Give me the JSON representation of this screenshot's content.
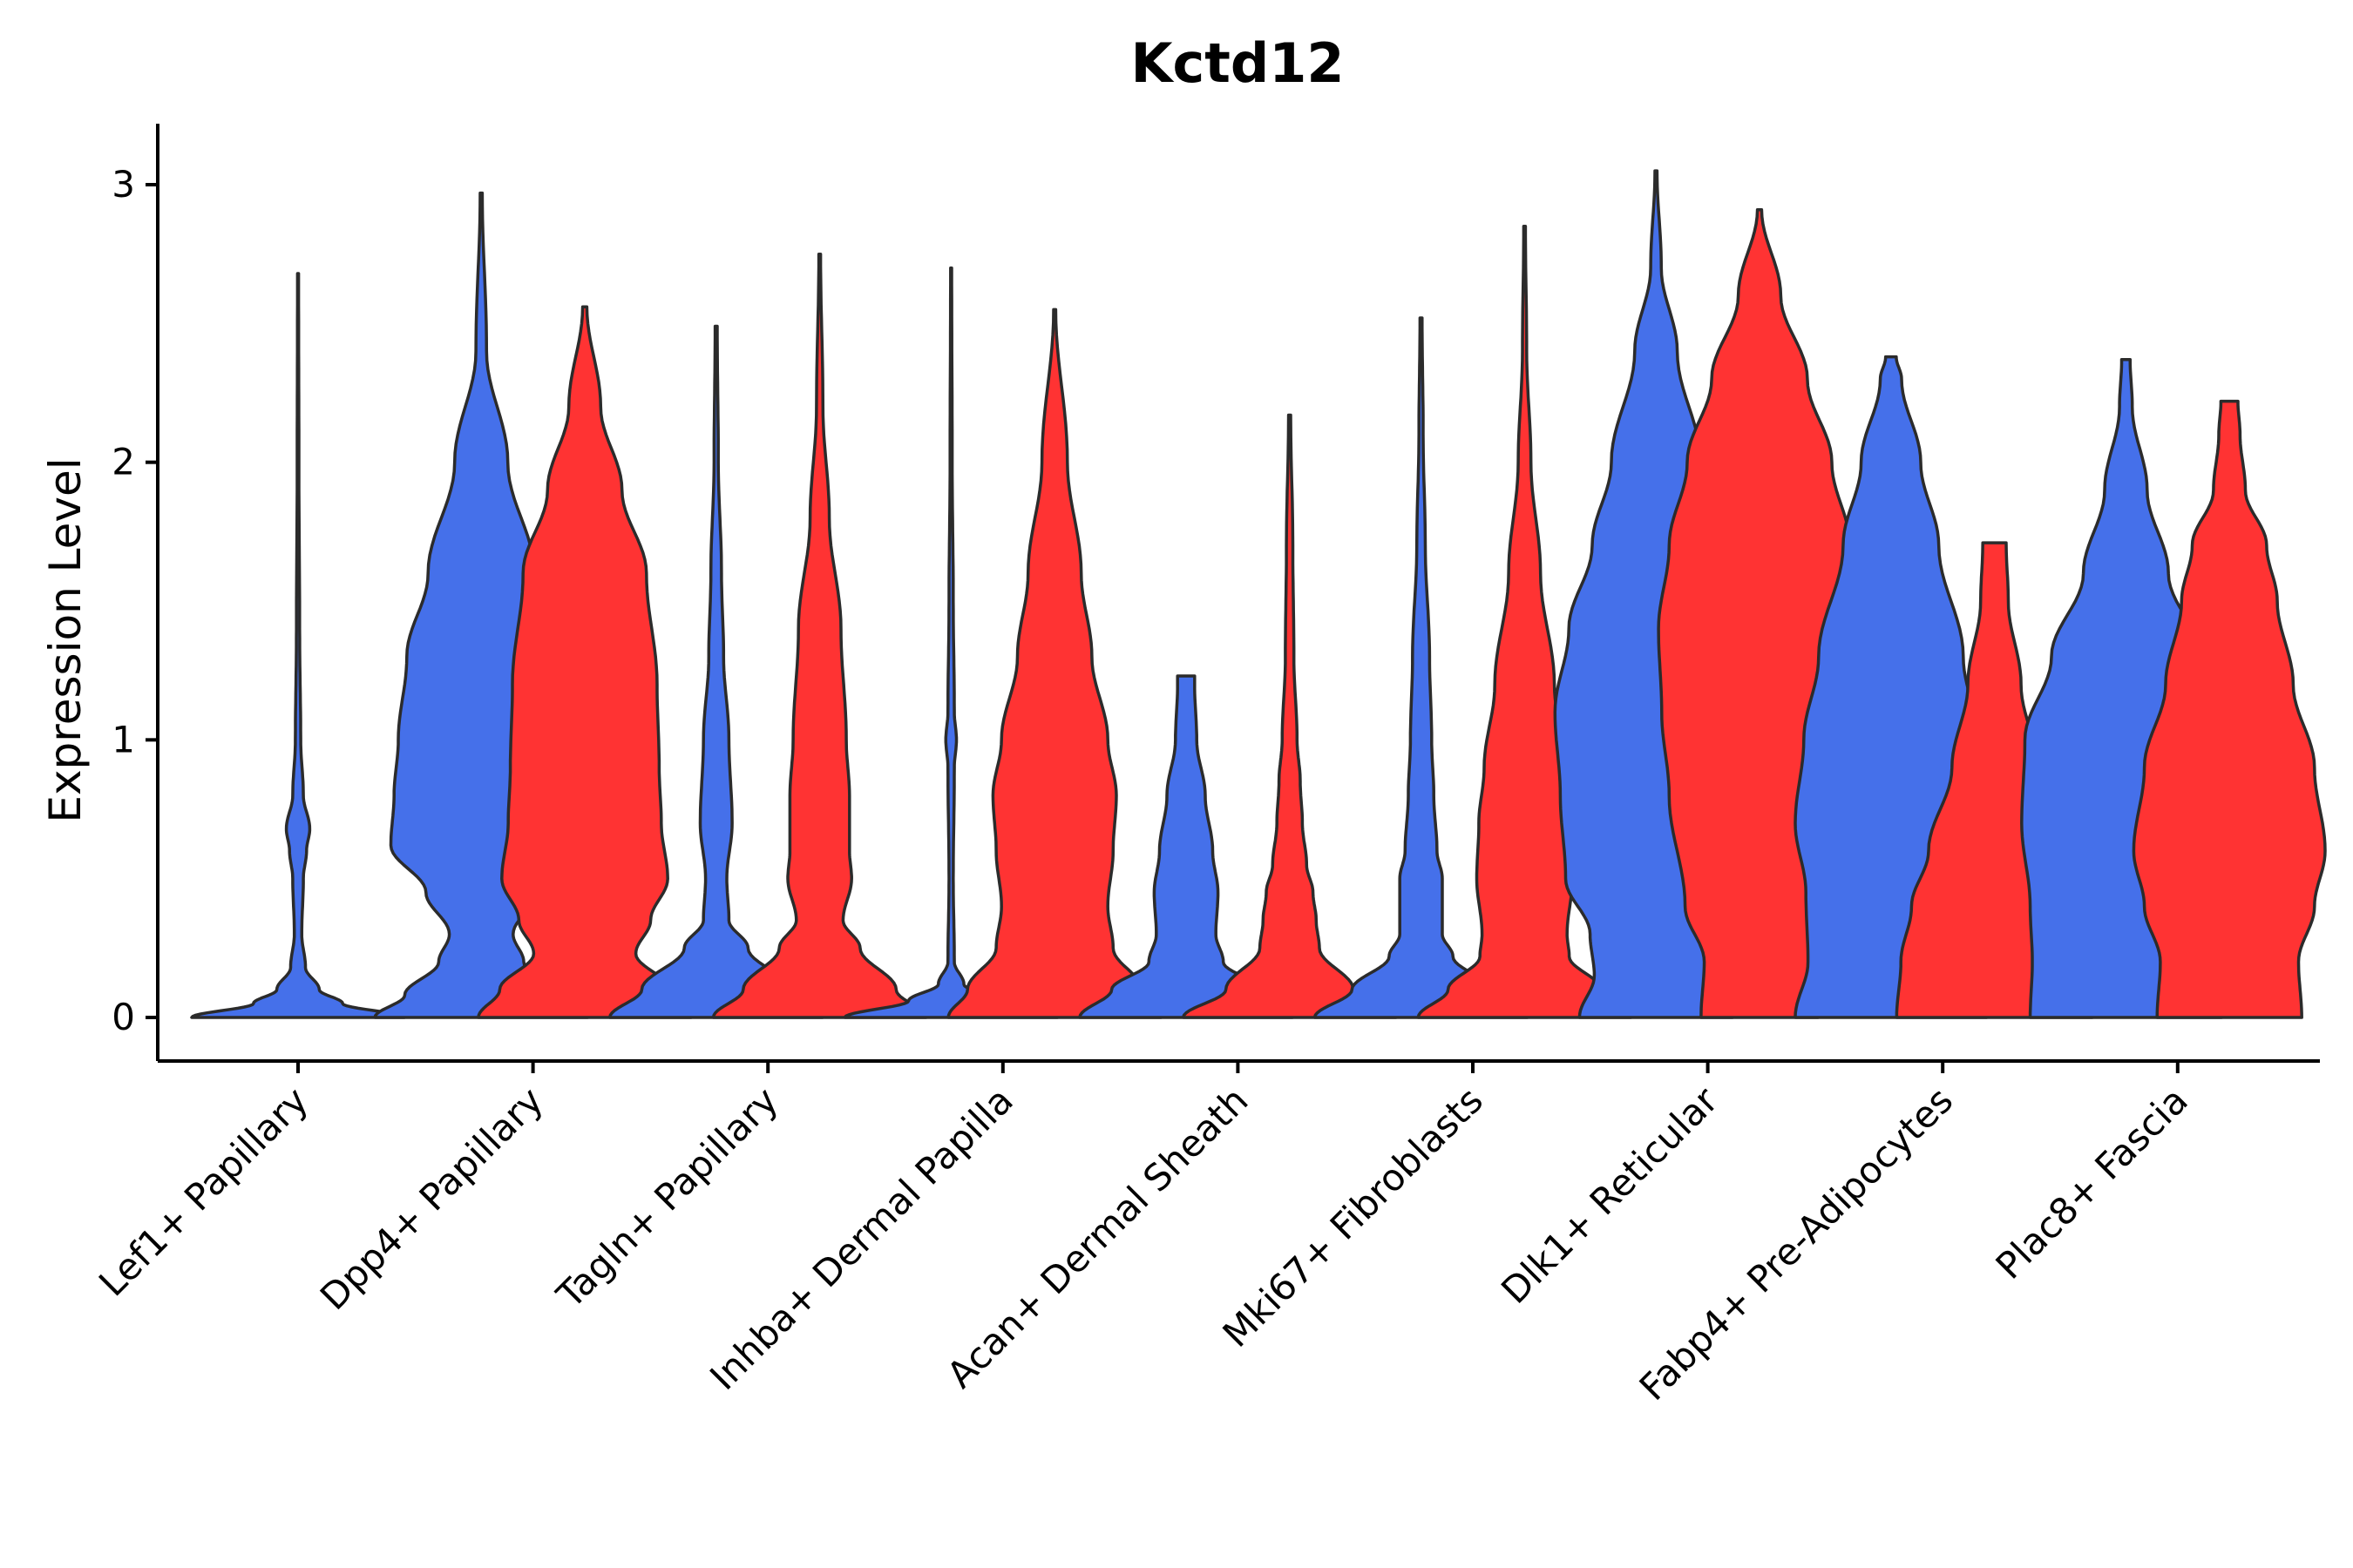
{
  "colors": {
    "blue": "#4570EA",
    "red": "#FF3333",
    "outline": "#2b2b2b"
  },
  "chart_data": {
    "type": "violin",
    "title": "Kctd12",
    "xlabel": "",
    "ylabel": "Expression Level",
    "ylim": [
      -0.15,
      3.2
    ],
    "yticks": [
      0,
      1,
      2,
      3
    ],
    "ytick_labels": [
      "0",
      "1",
      "2",
      "3"
    ],
    "grid": false,
    "legend": "none",
    "categories": [
      "Lef1+ Papillary",
      "Dpp4+ Papillary",
      "Tagln+ Papillary",
      "Inhba+ Dermal Papilla",
      "Acan+ Dermal Sheath",
      "Mki67+ Fibroblasts",
      "Dlk1+ Reticular",
      "Fabp4+ Pre-Adipocytes",
      "Plac8+ Fascia"
    ],
    "violins": [
      {
        "category": 0,
        "group": "blue",
        "offset": 0,
        "max": 2.68,
        "profile": [
          [
            0,
            1
          ],
          [
            0.05,
            0.42
          ],
          [
            0.1,
            0.2
          ],
          [
            0.18,
            0.07
          ],
          [
            0.3,
            0.035
          ],
          [
            0.5,
            0.05
          ],
          [
            0.6,
            0.08
          ],
          [
            0.68,
            0.11
          ],
          [
            0.8,
            0.05
          ],
          [
            1.0,
            0.025
          ],
          [
            1.4,
            0.015
          ],
          [
            2.0,
            0.008
          ],
          [
            2.68,
            0.005
          ]
        ]
      },
      {
        "category": 1,
        "group": "blue",
        "offset": -0.22,
        "max": 2.97,
        "profile": [
          [
            0,
            1
          ],
          [
            0.08,
            0.72
          ],
          [
            0.2,
            0.4
          ],
          [
            0.3,
            0.3
          ],
          [
            0.45,
            0.52
          ],
          [
            0.62,
            0.85
          ],
          [
            0.8,
            0.82
          ],
          [
            1.0,
            0.78
          ],
          [
            1.3,
            0.7
          ],
          [
            1.6,
            0.5
          ],
          [
            2.0,
            0.25
          ],
          [
            2.4,
            0.05
          ],
          [
            2.97,
            0.01
          ]
        ]
      },
      {
        "category": 1,
        "group": "red",
        "offset": 0.22,
        "max": 2.56,
        "profile": [
          [
            0,
            1
          ],
          [
            0.1,
            0.8
          ],
          [
            0.23,
            0.48
          ],
          [
            0.35,
            0.62
          ],
          [
            0.5,
            0.78
          ],
          [
            0.7,
            0.72
          ],
          [
            0.9,
            0.7
          ],
          [
            1.2,
            0.68
          ],
          [
            1.6,
            0.58
          ],
          [
            1.9,
            0.35
          ],
          [
            2.2,
            0.15
          ],
          [
            2.56,
            0.02
          ]
        ]
      },
      {
        "category": 2,
        "group": "blue",
        "offset": -0.22,
        "max": 2.49,
        "profile": [
          [
            0,
            1
          ],
          [
            0.1,
            0.7
          ],
          [
            0.25,
            0.3
          ],
          [
            0.35,
            0.12
          ],
          [
            0.5,
            0.1
          ],
          [
            0.7,
            0.15
          ],
          [
            1.0,
            0.12
          ],
          [
            1.3,
            0.07
          ],
          [
            1.6,
            0.05
          ],
          [
            2.0,
            0.02
          ],
          [
            2.49,
            0.01
          ]
        ]
      },
      {
        "category": 2,
        "group": "red",
        "offset": 0.22,
        "max": 2.75,
        "profile": [
          [
            0,
            1
          ],
          [
            0.1,
            0.72
          ],
          [
            0.25,
            0.38
          ],
          [
            0.35,
            0.22
          ],
          [
            0.5,
            0.3
          ],
          [
            0.6,
            0.28
          ],
          [
            0.8,
            0.28
          ],
          [
            1.0,
            0.25
          ],
          [
            1.4,
            0.2
          ],
          [
            1.8,
            0.09
          ],
          [
            2.2,
            0.03
          ],
          [
            2.75,
            0.008
          ]
        ]
      },
      {
        "category": 3,
        "group": "blue",
        "offset": -0.22,
        "max": 2.7,
        "profile": [
          [
            0,
            1
          ],
          [
            0.06,
            0.4
          ],
          [
            0.12,
            0.12
          ],
          [
            0.2,
            0.03
          ],
          [
            0.5,
            0.02
          ],
          [
            0.9,
            0.03
          ],
          [
            1.0,
            0.05
          ],
          [
            1.1,
            0.03
          ],
          [
            1.5,
            0.02
          ],
          [
            2.0,
            0.01
          ],
          [
            2.7,
            0.005
          ]
        ]
      },
      {
        "category": 3,
        "group": "red",
        "offset": 0.22,
        "max": 2.55,
        "profile": [
          [
            0,
            1
          ],
          [
            0.1,
            0.82
          ],
          [
            0.25,
            0.55
          ],
          [
            0.4,
            0.5
          ],
          [
            0.6,
            0.55
          ],
          [
            0.8,
            0.58
          ],
          [
            1.0,
            0.5
          ],
          [
            1.3,
            0.35
          ],
          [
            1.6,
            0.25
          ],
          [
            2.0,
            0.12
          ],
          [
            2.55,
            0.01
          ]
        ]
      },
      {
        "category": 4,
        "group": "blue",
        "offset": -0.22,
        "max": 1.23,
        "profile": [
          [
            0,
            1
          ],
          [
            0.1,
            0.7
          ],
          [
            0.2,
            0.35
          ],
          [
            0.3,
            0.28
          ],
          [
            0.45,
            0.3
          ],
          [
            0.6,
            0.25
          ],
          [
            0.8,
            0.18
          ],
          [
            1.0,
            0.1
          ],
          [
            1.2,
            0.08
          ],
          [
            1.23,
            0.08
          ]
        ]
      },
      {
        "category": 4,
        "group": "red",
        "offset": 0.22,
        "max": 2.17,
        "profile": [
          [
            0,
            1
          ],
          [
            0.1,
            0.6
          ],
          [
            0.25,
            0.28
          ],
          [
            0.35,
            0.25
          ],
          [
            0.45,
            0.22
          ],
          [
            0.55,
            0.16
          ],
          [
            0.7,
            0.12
          ],
          [
            0.85,
            0.1
          ],
          [
            1.0,
            0.07
          ],
          [
            1.3,
            0.04
          ],
          [
            1.7,
            0.03
          ],
          [
            2.17,
            0.01
          ]
        ]
      },
      {
        "category": 5,
        "group": "blue",
        "offset": -0.22,
        "max": 2.52,
        "profile": [
          [
            0,
            1
          ],
          [
            0.1,
            0.65
          ],
          [
            0.22,
            0.3
          ],
          [
            0.3,
            0.2
          ],
          [
            0.5,
            0.2
          ],
          [
            0.6,
            0.15
          ],
          [
            0.8,
            0.12
          ],
          [
            1.0,
            0.1
          ],
          [
            1.3,
            0.08
          ],
          [
            1.7,
            0.04
          ],
          [
            2.1,
            0.02
          ],
          [
            2.52,
            0.01
          ]
        ]
      },
      {
        "category": 5,
        "group": "red",
        "offset": 0.22,
        "max": 2.85,
        "profile": [
          [
            0,
            1
          ],
          [
            0.1,
            0.72
          ],
          [
            0.22,
            0.42
          ],
          [
            0.3,
            0.4
          ],
          [
            0.5,
            0.45
          ],
          [
            0.7,
            0.43
          ],
          [
            0.9,
            0.38
          ],
          [
            1.2,
            0.28
          ],
          [
            1.6,
            0.15
          ],
          [
            2.0,
            0.06
          ],
          [
            2.4,
            0.02
          ],
          [
            2.85,
            0.008
          ]
        ]
      },
      {
        "category": 6,
        "group": "blue",
        "offset": -0.22,
        "max": 3.05,
        "profile": [
          [
            0,
            0.72
          ],
          [
            0.15,
            0.58
          ],
          [
            0.3,
            0.62
          ],
          [
            0.5,
            0.85
          ],
          [
            0.8,
            0.9
          ],
          [
            1.1,
            0.95
          ],
          [
            1.4,
            0.82
          ],
          [
            1.7,
            0.6
          ],
          [
            2.0,
            0.42
          ],
          [
            2.4,
            0.2
          ],
          [
            2.7,
            0.05
          ],
          [
            3.05,
            0.01
          ]
        ]
      },
      {
        "category": 6,
        "group": "red",
        "offset": 0.22,
        "max": 2.91,
        "profile": [
          [
            0,
            0.55
          ],
          [
            0.2,
            0.52
          ],
          [
            0.4,
            0.7
          ],
          [
            0.8,
            0.85
          ],
          [
            1.1,
            0.92
          ],
          [
            1.4,
            0.95
          ],
          [
            1.7,
            0.85
          ],
          [
            2.0,
            0.68
          ],
          [
            2.3,
            0.45
          ],
          [
            2.6,
            0.2
          ],
          [
            2.91,
            0.02
          ]
        ]
      },
      {
        "category": 7,
        "group": "blue",
        "offset": -0.22,
        "max": 2.38,
        "profile": [
          [
            0,
            0.9
          ],
          [
            0.2,
            0.78
          ],
          [
            0.45,
            0.8
          ],
          [
            0.7,
            0.9
          ],
          [
            1.0,
            0.82
          ],
          [
            1.3,
            0.68
          ],
          [
            1.7,
            0.45
          ],
          [
            2.0,
            0.28
          ],
          [
            2.3,
            0.1
          ],
          [
            2.38,
            0.05
          ]
        ]
      },
      {
        "category": 7,
        "group": "red",
        "offset": 0.22,
        "max": 1.71,
        "profile": [
          [
            0,
            0.92
          ],
          [
            0.2,
            0.88
          ],
          [
            0.4,
            0.78
          ],
          [
            0.6,
            0.62
          ],
          [
            0.9,
            0.4
          ],
          [
            1.2,
            0.25
          ],
          [
            1.5,
            0.13
          ],
          [
            1.71,
            0.11
          ]
        ]
      },
      {
        "category": 8,
        "group": "blue",
        "offset": -0.22,
        "max": 2.37,
        "profile": [
          [
            0,
            0.9
          ],
          [
            0.2,
            0.88
          ],
          [
            0.4,
            0.9
          ],
          [
            0.7,
            0.98
          ],
          [
            1.0,
            0.95
          ],
          [
            1.3,
            0.7
          ],
          [
            1.6,
            0.4
          ],
          [
            1.9,
            0.2
          ],
          [
            2.2,
            0.06
          ],
          [
            2.37,
            0.04
          ]
        ]
      },
      {
        "category": 8,
        "group": "red",
        "offset": 0.22,
        "max": 2.22,
        "profile": [
          [
            0,
            0.68
          ],
          [
            0.2,
            0.65
          ],
          [
            0.4,
            0.8
          ],
          [
            0.6,
            0.9
          ],
          [
            0.9,
            0.8
          ],
          [
            1.2,
            0.6
          ],
          [
            1.5,
            0.45
          ],
          [
            1.7,
            0.35
          ],
          [
            1.9,
            0.15
          ],
          [
            2.1,
            0.1
          ],
          [
            2.22,
            0.08
          ]
        ]
      }
    ]
  }
}
